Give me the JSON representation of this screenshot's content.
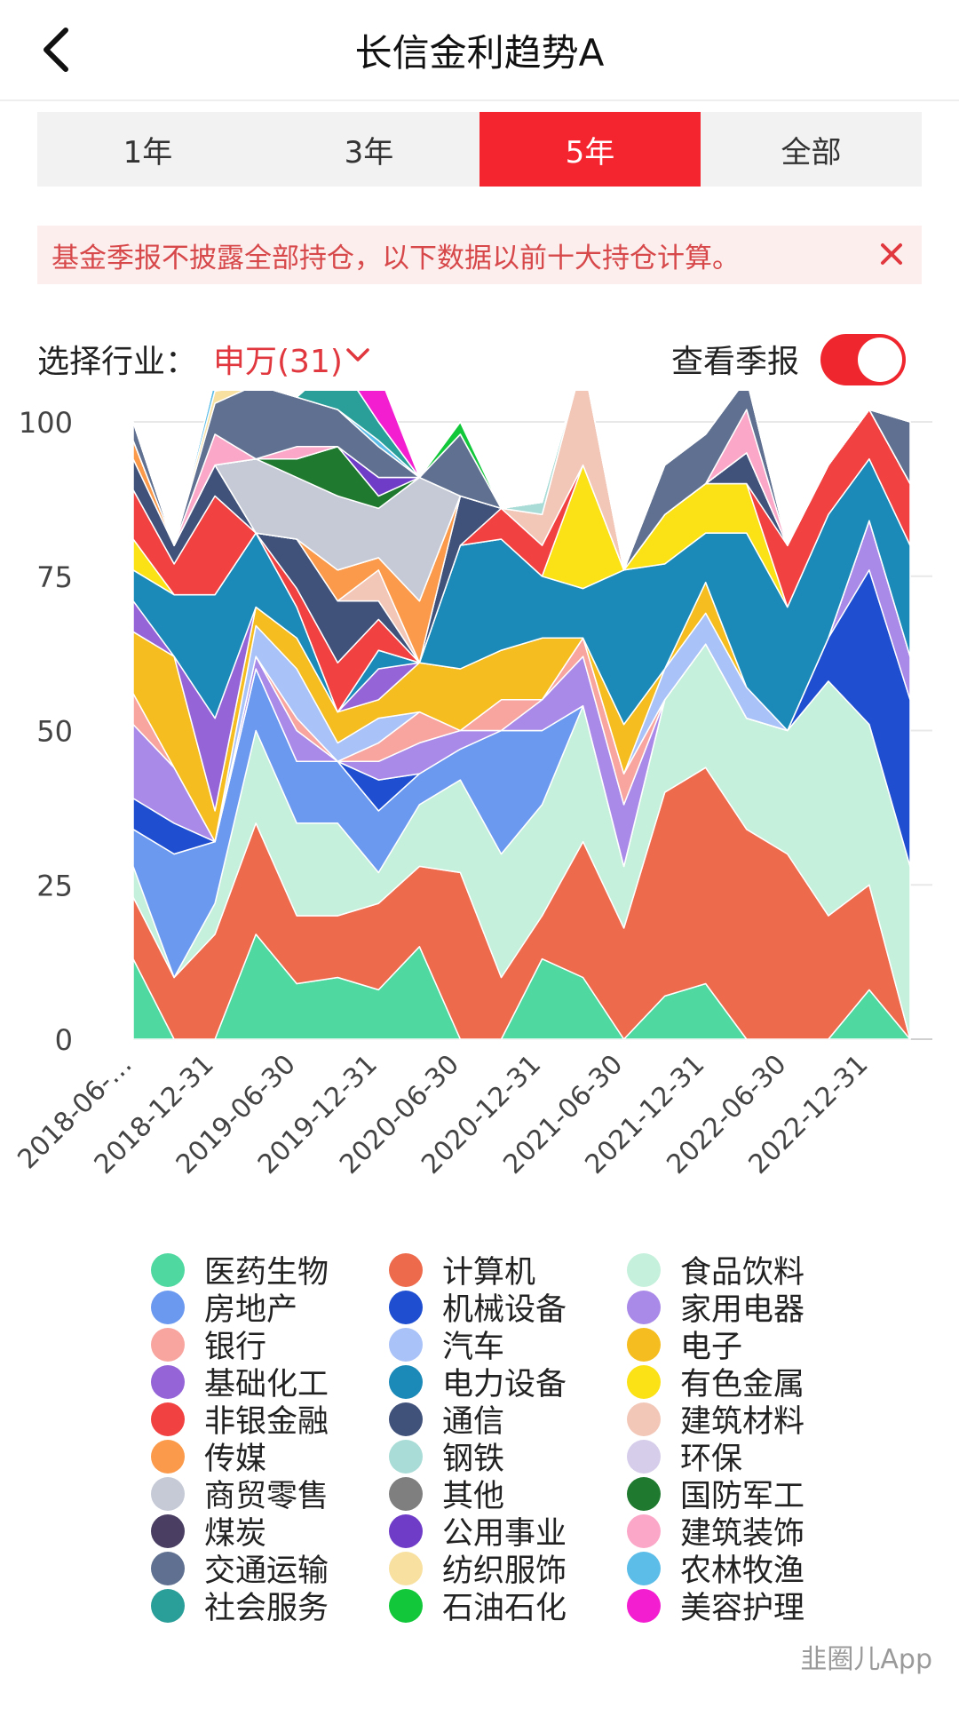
{
  "header": {
    "title": "长信金利趋势A"
  },
  "tabs": [
    {
      "label": "1年",
      "active": false
    },
    {
      "label": "3年",
      "active": false
    },
    {
      "label": "5年",
      "active": true
    },
    {
      "label": "全部",
      "active": false
    }
  ],
  "notice": {
    "text": "基金季报不披露全部持仓，以下数据以前十大持仓计算。"
  },
  "filter": {
    "label": "选择行业：",
    "value": "申万(31)",
    "report_label": "查看季报",
    "report_on": true
  },
  "watermark": "韭圈儿App",
  "chart_data": {
    "type": "area",
    "stacked": true,
    "ylim": [
      0,
      100
    ],
    "yticks": [
      0,
      25,
      50,
      75,
      100
    ],
    "grid": true,
    "x_tick_labels": [
      "2018-06-…",
      "2018-12-31",
      "2019-06-30",
      "2019-12-31",
      "2020-06-30",
      "2020-12-31",
      "2021-06-30",
      "2021-12-31",
      "2022-06-30",
      "2022-12-31"
    ],
    "periods": [
      "2018-06-30",
      "2018-09-30",
      "2018-12-31",
      "2019-03-31",
      "2019-06-30",
      "2019-09-30",
      "2019-12-31",
      "2020-03-31",
      "2020-06-30",
      "2020-09-30",
      "2020-12-31",
      "2021-03-31",
      "2021-06-30",
      "2021-09-30",
      "2021-12-31",
      "2022-03-31",
      "2022-06-30",
      "2022-09-30",
      "2022-12-31",
      "2023-03-31"
    ],
    "series": [
      {
        "name": "医药生物",
        "color": "#4fd8a0",
        "values": [
          13,
          0,
          0,
          17,
          9,
          10,
          8,
          15,
          0,
          0,
          13,
          10,
          0,
          7,
          9,
          0,
          0,
          0,
          8,
          0
        ]
      },
      {
        "name": "计算机",
        "color": "#ed6a4c",
        "values": [
          10,
          10,
          17,
          18,
          11,
          10,
          14,
          13,
          27,
          10,
          7,
          22,
          18,
          33,
          35,
          34,
          30,
          20,
          17,
          0
        ]
      },
      {
        "name": "食品饮料",
        "color": "#c5f0dc",
        "values": [
          5,
          0,
          5,
          15,
          15,
          15,
          5,
          10,
          15,
          20,
          18,
          22,
          10,
          15,
          20,
          18,
          20,
          38,
          26,
          28
        ]
      },
      {
        "name": "房地产",
        "color": "#6b99f0",
        "values": [
          6,
          20,
          10,
          10,
          10,
          10,
          10,
          5,
          5,
          20,
          12,
          0,
          0,
          0,
          0,
          0,
          0,
          0,
          0,
          0
        ]
      },
      {
        "name": "机械设备",
        "color": "#1f4fd0",
        "values": [
          5,
          5,
          0,
          0,
          0,
          0,
          5,
          0,
          0,
          0,
          0,
          0,
          0,
          0,
          0,
          0,
          0,
          7,
          25,
          27
        ]
      },
      {
        "name": "家用电器",
        "color": "#a98ae8",
        "values": [
          12,
          9,
          0,
          2,
          5,
          0,
          3,
          5,
          3,
          0,
          5,
          8,
          10,
          0,
          0,
          0,
          0,
          0,
          8,
          7
        ]
      },
      {
        "name": "银行",
        "color": "#f8a5a0",
        "values": [
          5,
          0,
          0,
          0,
          2,
          0,
          3,
          5,
          0,
          5,
          0,
          3,
          5,
          0,
          0,
          0,
          0,
          0,
          0,
          0
        ]
      },
      {
        "name": "汽车",
        "color": "#a9c2f7",
        "values": [
          0,
          0,
          0,
          5,
          8,
          3,
          4,
          0,
          0,
          0,
          0,
          0,
          0,
          5,
          5,
          5,
          0,
          0,
          0,
          0
        ]
      },
      {
        "name": "电子",
        "color": "#f5bd1f",
        "values": [
          10,
          18,
          5,
          3,
          5,
          5,
          3,
          8,
          10,
          8,
          10,
          0,
          8,
          0,
          5,
          0,
          0,
          0,
          0,
          0
        ]
      },
      {
        "name": "基础化工",
        "color": "#9565d8",
        "values": [
          5,
          0,
          15,
          0,
          0,
          0,
          5,
          0,
          0,
          0,
          0,
          0,
          0,
          0,
          0,
          0,
          0,
          0,
          0,
          0
        ]
      },
      {
        "name": "电力设备",
        "color": "#1b8ab8",
        "values": [
          5,
          10,
          20,
          12,
          5,
          0,
          3,
          0,
          20,
          18,
          10,
          8,
          25,
          17,
          8,
          25,
          20,
          20,
          10,
          18
        ]
      },
      {
        "name": "有色金属",
        "color": "#fbe216",
        "values": [
          5,
          0,
          0,
          0,
          0,
          0,
          0,
          0,
          0,
          0,
          0,
          20,
          0,
          8,
          8,
          8,
          0,
          0,
          0,
          0
        ]
      },
      {
        "name": "非银金融",
        "color": "#f24141",
        "values": [
          8,
          5,
          16,
          0,
          3,
          8,
          5,
          0,
          0,
          5,
          5,
          0,
          0,
          0,
          0,
          0,
          10,
          8,
          8,
          10
        ]
      },
      {
        "name": "通信",
        "color": "#40517a",
        "values": [
          5,
          3,
          5,
          0,
          8,
          10,
          3,
          0,
          8,
          0,
          0,
          0,
          0,
          0,
          0,
          5,
          0,
          0,
          0,
          0
        ]
      },
      {
        "name": "建筑材料",
        "color": "#f2c7b8",
        "values": [
          0,
          0,
          0,
          0,
          0,
          0,
          5,
          0,
          0,
          0,
          5,
          17,
          0,
          0,
          0,
          0,
          0,
          0,
          0,
          0
        ]
      },
      {
        "name": "传媒",
        "color": "#fb9a4a",
        "values": [
          3,
          0,
          0,
          0,
          0,
          5,
          2,
          10,
          0,
          0,
          0,
          0,
          0,
          0,
          0,
          0,
          0,
          0,
          0,
          0
        ]
      },
      {
        "name": "钢铁",
        "color": "#a9dcd6",
        "values": [
          0,
          0,
          0,
          0,
          0,
          0,
          0,
          0,
          0,
          0,
          2,
          0,
          0,
          0,
          0,
          0,
          0,
          0,
          0,
          0
        ]
      },
      {
        "name": "环保",
        "color": "#d6cdea",
        "values": [
          0,
          0,
          0,
          0,
          0,
          0,
          0,
          0,
          0,
          0,
          0,
          0,
          0,
          0,
          0,
          0,
          0,
          0,
          0,
          0
        ]
      },
      {
        "name": "商贸零售",
        "color": "#c5cad6",
        "values": [
          0,
          0,
          0,
          12,
          10,
          12,
          8,
          20,
          0,
          0,
          0,
          0,
          0,
          0,
          0,
          0,
          0,
          0,
          0,
          0
        ]
      },
      {
        "name": "其他",
        "color": "#7f7f7f",
        "values": [
          0,
          0,
          0,
          0,
          0,
          0,
          0,
          0,
          0,
          0,
          0,
          0,
          0,
          0,
          0,
          0,
          0,
          0,
          0,
          0
        ]
      },
      {
        "name": "国防军工",
        "color": "#1f7a30",
        "values": [
          0,
          0,
          0,
          0,
          3,
          8,
          2,
          0,
          0,
          0,
          0,
          0,
          0,
          0,
          0,
          0,
          0,
          0,
          0,
          0
        ]
      },
      {
        "name": "煤炭",
        "color": "#4a3f62",
        "values": [
          0,
          0,
          0,
          0,
          0,
          0,
          0,
          0,
          0,
          0,
          0,
          0,
          0,
          0,
          0,
          0,
          0,
          0,
          0,
          0
        ]
      },
      {
        "name": "公用事业",
        "color": "#6f3cc8",
        "values": [
          0,
          0,
          0,
          0,
          0,
          0,
          3,
          0,
          0,
          0,
          0,
          0,
          0,
          0,
          0,
          0,
          0,
          0,
          0,
          0
        ]
      },
      {
        "name": "建筑装饰",
        "color": "#fba8c8",
        "values": [
          0,
          0,
          5,
          0,
          2,
          0,
          0,
          0,
          0,
          0,
          0,
          0,
          0,
          0,
          0,
          7,
          0,
          0,
          0,
          0
        ]
      },
      {
        "name": "交通运输",
        "color": "#5f7090",
        "values": [
          3,
          0,
          5,
          12,
          8,
          6,
          5,
          0,
          10,
          0,
          0,
          0,
          0,
          8,
          8,
          5,
          0,
          0,
          0,
          10
        ]
      },
      {
        "name": "纺织服饰",
        "color": "#f8e0a0",
        "values": [
          0,
          0,
          2,
          0,
          0,
          0,
          0,
          0,
          0,
          0,
          0,
          0,
          0,
          0,
          0,
          0,
          0,
          0,
          0,
          0
        ]
      },
      {
        "name": "农林牧渔",
        "color": "#5cbde8",
        "values": [
          0,
          0,
          2,
          0,
          0,
          0,
          1,
          0,
          0,
          0,
          0,
          0,
          0,
          0,
          0,
          0,
          0,
          0,
          0,
          0
        ]
      },
      {
        "name": "社会服务",
        "color": "#2a9e98",
        "values": [
          0,
          0,
          0,
          0,
          0,
          8,
          3,
          0,
          0,
          0,
          0,
          0,
          0,
          0,
          0,
          0,
          0,
          0,
          0,
          0
        ]
      },
      {
        "name": "石油石化",
        "color": "#12c83a",
        "values": [
          0,
          0,
          0,
          0,
          0,
          0,
          0,
          0,
          2,
          0,
          0,
          0,
          0,
          0,
          0,
          0,
          0,
          0,
          0,
          0
        ]
      },
      {
        "name": "美容护理",
        "color": "#f21ed0",
        "values": [
          0,
          0,
          0,
          0,
          0,
          0,
          8,
          0,
          0,
          0,
          0,
          0,
          0,
          0,
          0,
          0,
          0,
          0,
          0,
          0
        ]
      }
    ]
  }
}
